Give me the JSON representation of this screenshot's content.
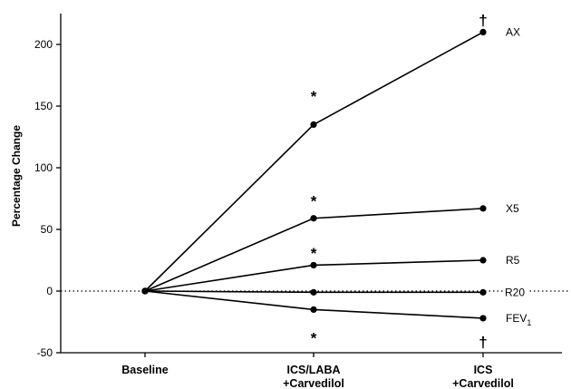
{
  "chart_data": {
    "type": "line",
    "title": "",
    "xlabel": "",
    "ylabel": "Percentage Change",
    "ylim": [
      -50,
      225
    ],
    "yticks": [
      -50,
      0,
      50,
      100,
      150,
      200
    ],
    "grid": false,
    "reference_line": 0,
    "categories": [
      [
        "Baseline"
      ],
      [
        "ICS/LABA",
        "+Carvedilol"
      ],
      [
        "ICS",
        "+Carvedilol"
      ]
    ],
    "series": [
      {
        "name": "AX",
        "label_main": "AX",
        "label_sub": "",
        "values": [
          0,
          135,
          210
        ]
      },
      {
        "name": "X5",
        "label_main": "X5",
        "label_sub": "",
        "values": [
          0,
          59,
          67
        ]
      },
      {
        "name": "R5",
        "label_main": "R5",
        "label_sub": "",
        "values": [
          0,
          21,
          25
        ]
      },
      {
        "name": "R20",
        "label_main": "R20",
        "label_sub": "",
        "values": [
          0,
          -1,
          -1
        ]
      },
      {
        "name": "FEV1",
        "label_main": "FEV",
        "label_sub": "1",
        "values": [
          0,
          -15,
          -22
        ]
      }
    ],
    "annotations": [
      {
        "symbol": "*",
        "category": 1,
        "y": 158
      },
      {
        "symbol": "*",
        "category": 1,
        "y": 73
      },
      {
        "symbol": "*",
        "category": 1,
        "y": 31
      },
      {
        "symbol": "*",
        "category": 1,
        "y": -38
      },
      {
        "symbol": "†",
        "category": 2,
        "y": 220
      },
      {
        "symbol": "†",
        "category": 2,
        "y": -41
      }
    ]
  }
}
